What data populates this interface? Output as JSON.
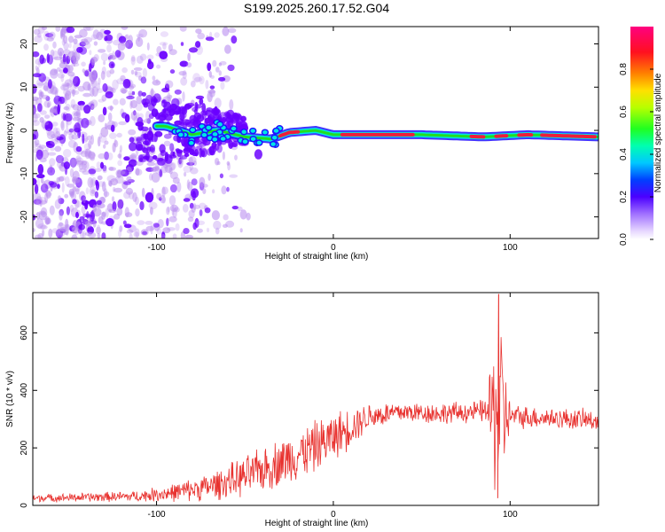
{
  "title": "S199.2025.260.17.52.G04",
  "colors": {
    "snr_line": "#e8322f",
    "spectrogram_faint": "#b88cf0",
    "spectrogram_strong": "#6a00ff",
    "ridge_cyan": "#00e5e5",
    "ridge_green": "#22dd22",
    "ridge_red": "#ee1d3a"
  },
  "chart_data": [
    {
      "type": "heatmap",
      "name": "spectrogram",
      "xlabel": "Height of straight line (km)",
      "ylabel": "Frequency (Hz)",
      "xlim": [
        -170,
        150
      ],
      "ylim": [
        -25,
        24
      ],
      "xticks": [
        -100,
        0,
        100
      ],
      "yticks": [
        -20,
        -10,
        0,
        10,
        20
      ],
      "grid": false,
      "description_of_ridge": [
        {
          "x": -95,
          "freq": 1
        },
        {
          "x": -80,
          "freq": -1
        },
        {
          "x": -65,
          "freq": 0
        },
        {
          "x": -50,
          "freq": -1.5
        },
        {
          "x": -35,
          "freq": -2
        },
        {
          "x": -25,
          "freq": -0.5
        },
        {
          "x": -10,
          "freq": 0
        },
        {
          "x": 0,
          "freq": -1
        },
        {
          "x": 50,
          "freq": -1
        },
        {
          "x": 85,
          "freq": -1.5
        },
        {
          "x": 110,
          "freq": -1
        },
        {
          "x": 150,
          "freq": -1.5
        }
      ],
      "colorbar": {
        "label": "Normalized spectral amplitude",
        "ticks": [
          "0.0",
          "0.2",
          "0.4",
          "0.6",
          "0.8"
        ],
        "range": [
          0,
          1
        ]
      }
    },
    {
      "type": "line",
      "name": "snr",
      "xlabel": "Height of straight line (km)",
      "ylabel": "SNR (10 * v/v)",
      "xlim": [
        -170,
        150
      ],
      "ylim": [
        0,
        740
      ],
      "xticks": [
        -100,
        0,
        100
      ],
      "yticks": [
        0,
        200,
        400,
        600
      ],
      "grid": false,
      "envelope": [
        {
          "x": -170,
          "mean": 25,
          "spread": 12
        },
        {
          "x": -140,
          "mean": 28,
          "spread": 15
        },
        {
          "x": -110,
          "mean": 32,
          "spread": 18
        },
        {
          "x": -90,
          "mean": 45,
          "spread": 30
        },
        {
          "x": -70,
          "mean": 65,
          "spread": 45
        },
        {
          "x": -50,
          "mean": 100,
          "spread": 65
        },
        {
          "x": -30,
          "mean": 150,
          "spread": 80
        },
        {
          "x": -10,
          "mean": 205,
          "spread": 85
        },
        {
          "x": 5,
          "mean": 255,
          "spread": 75
        },
        {
          "x": 20,
          "mean": 310,
          "spread": 45
        },
        {
          "x": 40,
          "mean": 325,
          "spread": 35
        },
        {
          "x": 60,
          "mean": 320,
          "spread": 35
        },
        {
          "x": 80,
          "mean": 325,
          "spread": 35
        },
        {
          "x": 87,
          "mean": 330,
          "spread": 40
        },
        {
          "x": 90,
          "mean": 320,
          "spread": 250
        },
        {
          "x": 95,
          "mean": 320,
          "spread": 300
        },
        {
          "x": 100,
          "mean": 310,
          "spread": 40
        },
        {
          "x": 120,
          "mean": 305,
          "spread": 35
        },
        {
          "x": 150,
          "mean": 295,
          "spread": 35
        }
      ],
      "peak": {
        "x": 93.5,
        "y": 735
      },
      "dip": {
        "x": 93,
        "y": 25
      }
    }
  ]
}
